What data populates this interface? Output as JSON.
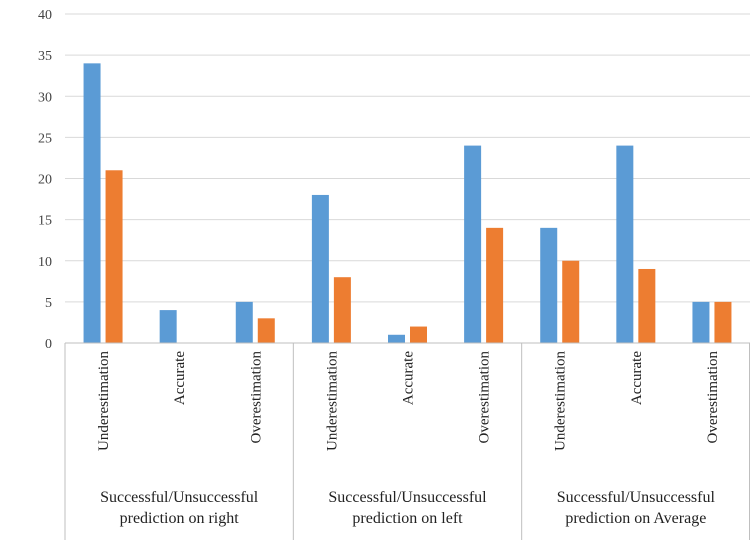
{
  "chart_data": {
    "type": "bar",
    "ylim": [
      0,
      40
    ],
    "yticks": [
      0,
      5,
      10,
      15,
      20,
      25,
      30,
      35,
      40
    ],
    "grid": true,
    "groups": [
      {
        "label_lines": [
          "Successful/Unsuccessful",
          "prediction on right"
        ],
        "categories": [
          "Underestimation",
          "Accurate",
          "Overestimation"
        ]
      },
      {
        "label_lines": [
          "Successful/Unsuccessful",
          "prediction on left"
        ],
        "categories": [
          "Underestimation",
          "Accurate",
          "Overestimation"
        ]
      },
      {
        "label_lines": [
          "Successful/Unsuccessful",
          "prediction on Average"
        ],
        "categories": [
          "Underestimation",
          "Accurate",
          "Overestimation"
        ]
      }
    ],
    "series": [
      {
        "values": [
          34,
          4,
          5,
          18,
          1,
          24,
          14,
          24,
          5
        ],
        "color": "#5b9bd5"
      },
      {
        "values": [
          21,
          0,
          3,
          8,
          2,
          14,
          10,
          9,
          5
        ],
        "color": "#ed7d31"
      }
    ]
  }
}
